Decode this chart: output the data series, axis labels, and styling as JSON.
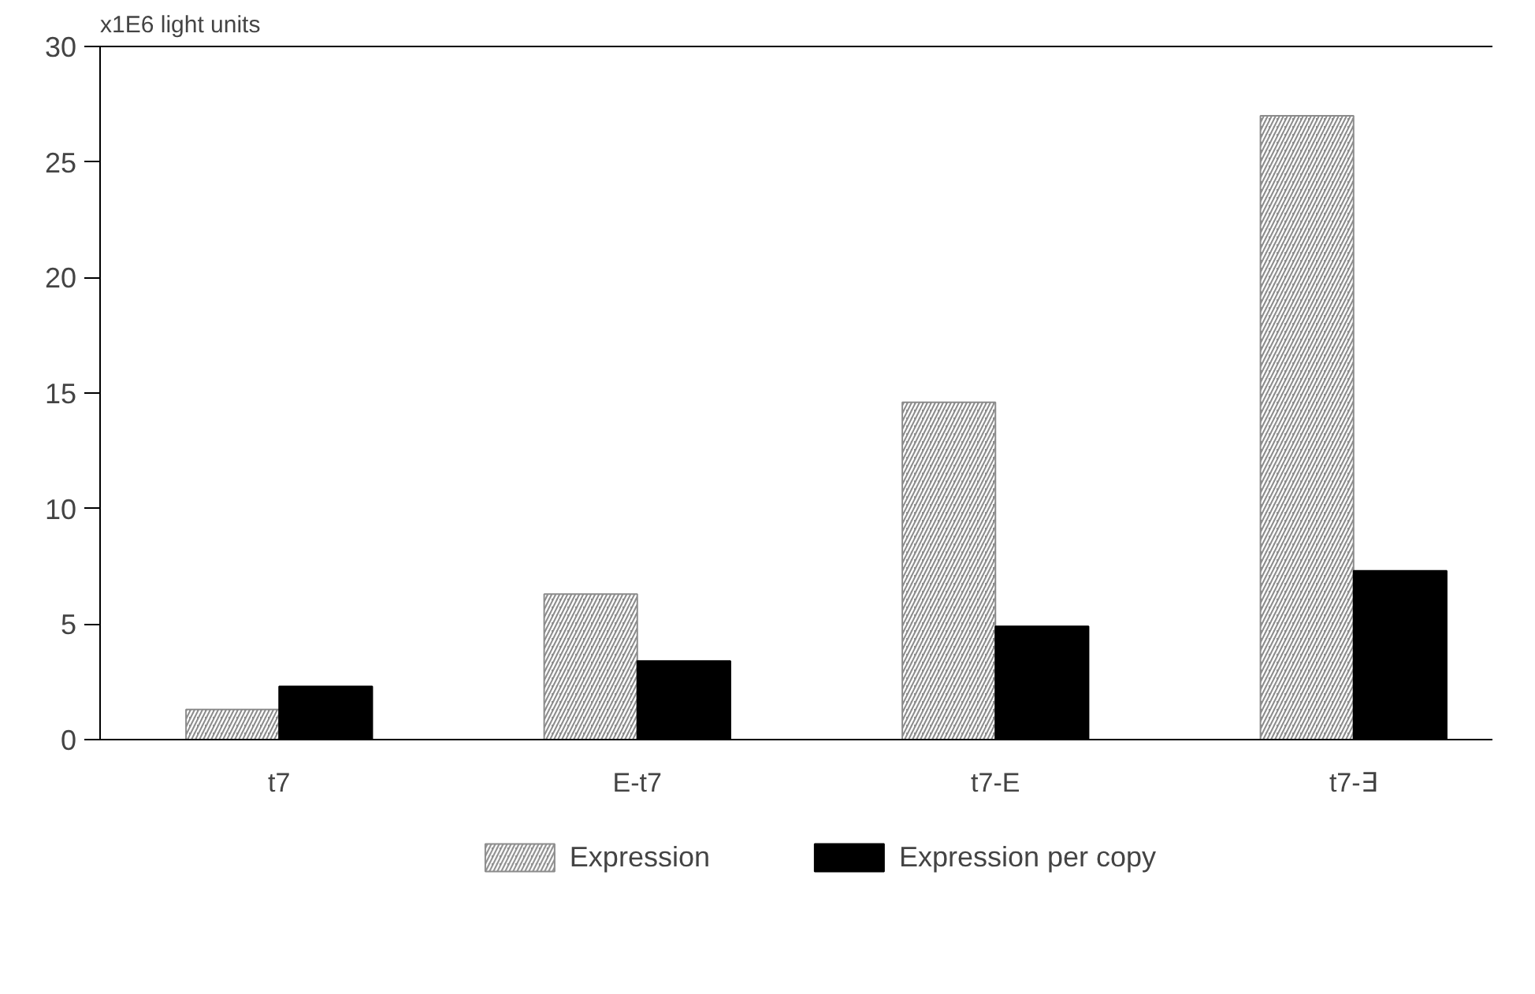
{
  "chart_data": {
    "type": "bar",
    "ylabel": "x1E6 light units",
    "categories": [
      "t7",
      "E-t7",
      "t7-E",
      "t7-∃"
    ],
    "series": [
      {
        "name": "Expression",
        "color": "#8c8c8c",
        "values": [
          1.3,
          6.3,
          14.6,
          27.0
        ]
      },
      {
        "name": "Expression per copy",
        "color": "#000000",
        "values": [
          2.3,
          3.4,
          4.9,
          7.3
        ]
      }
    ],
    "ylim": [
      0,
      30
    ],
    "yticks": [
      0,
      5,
      10,
      15,
      20,
      25,
      30
    ],
    "grid": false,
    "legend": "bottom"
  }
}
